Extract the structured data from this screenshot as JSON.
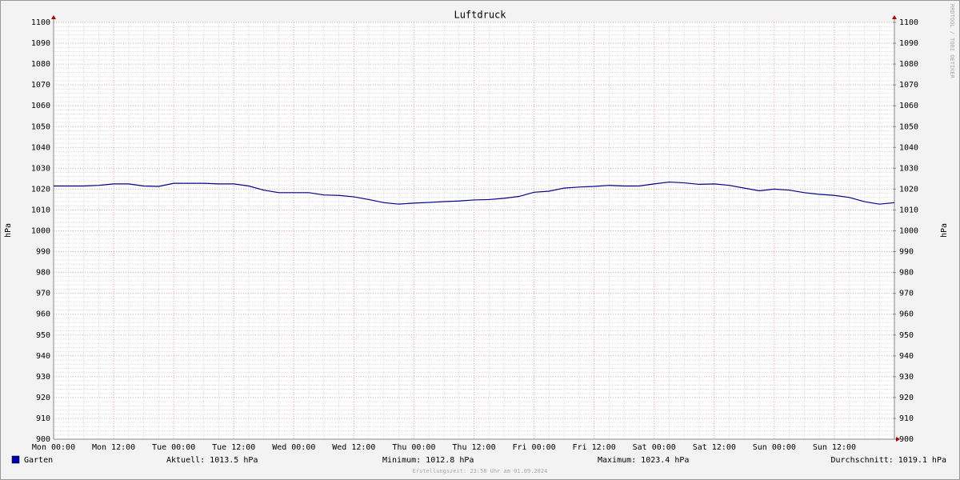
{
  "chart_data": {
    "type": "line",
    "title": "Luftdruck",
    "ylabel": "hPa",
    "y2label": "hPa",
    "x": [
      0,
      3,
      6,
      9,
      12,
      15,
      18,
      21,
      24,
      27,
      30,
      33,
      36,
      39,
      42,
      45,
      48,
      51,
      54,
      57,
      60,
      63,
      66,
      69,
      72,
      75,
      78,
      81,
      84,
      87,
      90,
      93,
      96,
      99,
      102,
      105,
      108,
      111,
      114,
      117,
      120,
      123,
      126,
      129,
      132,
      135,
      138,
      141,
      144,
      147,
      150,
      153,
      156,
      159,
      162,
      165,
      168
    ],
    "xlim": [
      0,
      168
    ],
    "xticks": [
      {
        "value": 0,
        "label": "Mon 00:00"
      },
      {
        "value": 12,
        "label": "Mon 12:00"
      },
      {
        "value": 24,
        "label": "Tue 00:00"
      },
      {
        "value": 36,
        "label": "Tue 12:00"
      },
      {
        "value": 48,
        "label": "Wed 00:00"
      },
      {
        "value": 60,
        "label": "Wed 12:00"
      },
      {
        "value": 72,
        "label": "Thu 00:00"
      },
      {
        "value": 84,
        "label": "Thu 12:00"
      },
      {
        "value": 96,
        "label": "Fri 00:00"
      },
      {
        "value": 108,
        "label": "Fri 12:00"
      },
      {
        "value": 120,
        "label": "Sat 00:00"
      },
      {
        "value": 132,
        "label": "Sat 12:00"
      },
      {
        "value": 144,
        "label": "Sun 00:00"
      },
      {
        "value": 156,
        "label": "Sun 12:00"
      }
    ],
    "ylim": [
      900,
      1100
    ],
    "yticks": [
      900,
      910,
      920,
      930,
      940,
      950,
      960,
      970,
      980,
      990,
      1000,
      1010,
      1020,
      1030,
      1040,
      1050,
      1060,
      1070,
      1080,
      1090,
      1100
    ],
    "y2lim": [
      900,
      1100
    ],
    "y2ticks": [
      900,
      910,
      920,
      930,
      940,
      950,
      960,
      970,
      980,
      990,
      1000,
      1010,
      1020,
      1030,
      1040,
      1050,
      1060,
      1070,
      1080,
      1090,
      1100
    ],
    "grid": true,
    "series": [
      {
        "name": "Garten",
        "color": "#00008b",
        "values": [
          1021.5,
          1021.5,
          1021.5,
          1021.8,
          1022.5,
          1022.5,
          1021.5,
          1021.3,
          1022.8,
          1022.8,
          1022.8,
          1022.5,
          1022.5,
          1021.5,
          1019.5,
          1018.3,
          1018.3,
          1018.3,
          1017.2,
          1017,
          1016.3,
          1015,
          1013.5,
          1012.8,
          1013.3,
          1013.6,
          1014,
          1014.3,
          1014.8,
          1015,
          1015.6,
          1016.5,
          1018.5,
          1019,
          1020.5,
          1021,
          1021.3,
          1021.8,
          1021.5,
          1021.5,
          1022.5,
          1023.4,
          1023,
          1022.3,
          1022.5,
          1021.8,
          1020.5,
          1019.2,
          1020,
          1019.5,
          1018.3,
          1017.5,
          1017,
          1016,
          1014,
          1012.8,
          1013.5
        ]
      }
    ],
    "stats": [
      "Aktuell: 1013.5 hPa",
      "Minimum: 1012.8 hPa",
      "Maximum: 1023.4 hPa",
      "Durchschnitt: 1019.1 hPa"
    ],
    "footer": "Erstellungszeit: 23:58 Uhr am 01.09.2024",
    "watermark": "RRDTOOL / TOBI OETIKER"
  }
}
